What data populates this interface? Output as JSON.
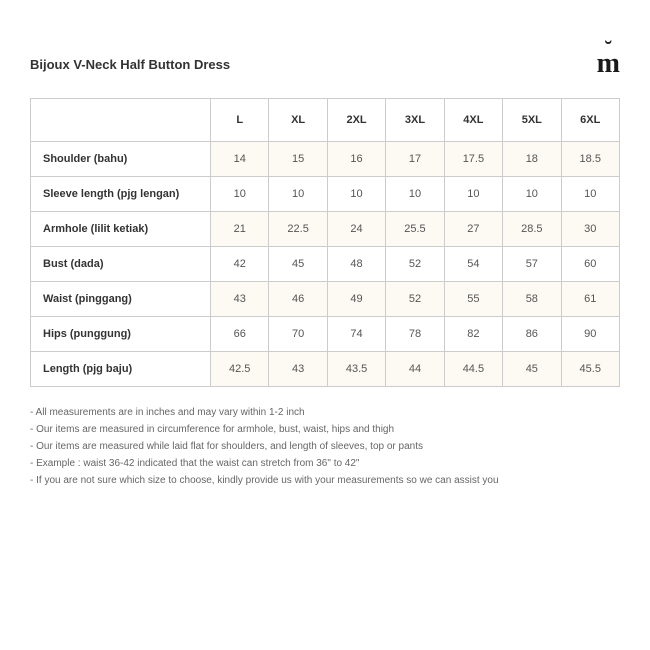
{
  "title": "Bijoux V-Neck Half Button Dress",
  "logo": "m",
  "table": {
    "type": "table",
    "background_odd": "#fdf9f3",
    "background_even": "#ffffff",
    "border_color": "#cccccc",
    "text_color": "#555555",
    "header_color": "#333333",
    "font_size": 11,
    "columns": [
      "",
      "L",
      "XL",
      "2XL",
      "3XL",
      "4XL",
      "5XL",
      "6XL"
    ],
    "rows": [
      {
        "label": "Shoulder (bahu)",
        "values": [
          "14",
          "15",
          "16",
          "17",
          "17.5",
          "18",
          "18.5"
        ]
      },
      {
        "label": "Sleeve length (pjg lengan)",
        "values": [
          "10",
          "10",
          "10",
          "10",
          "10",
          "10",
          "10"
        ]
      },
      {
        "label": "Armhole (lilit ketiak)",
        "values": [
          "21",
          "22.5",
          "24",
          "25.5",
          "27",
          "28.5",
          "30"
        ]
      },
      {
        "label": "Bust (dada)",
        "values": [
          "42",
          "45",
          "48",
          "52",
          "54",
          "57",
          "60"
        ]
      },
      {
        "label": "Waist (pinggang)",
        "values": [
          "43",
          "46",
          "49",
          "52",
          "55",
          "58",
          "61"
        ]
      },
      {
        "label": "Hips (punggung)",
        "values": [
          "66",
          "70",
          "74",
          "78",
          "82",
          "86",
          "90"
        ]
      },
      {
        "label": "Length (pjg baju)",
        "values": [
          "42.5",
          "43",
          "43.5",
          "44",
          "44.5",
          "45",
          "45.5"
        ]
      }
    ]
  },
  "notes": [
    "- All measurements are in inches and may vary within 1-2 inch",
    "- Our items are measured in circumference for armhole, bust, waist, hips and thigh",
    "- Our items are measured while laid flat for shoulders, and length of sleeves, top or pants",
    "- Example : waist 36-42 indicated that the waist can stretch from 36\" to 42\"",
    "- If you are not sure which size to choose, kindly provide us with your measurements so we can assist you"
  ]
}
